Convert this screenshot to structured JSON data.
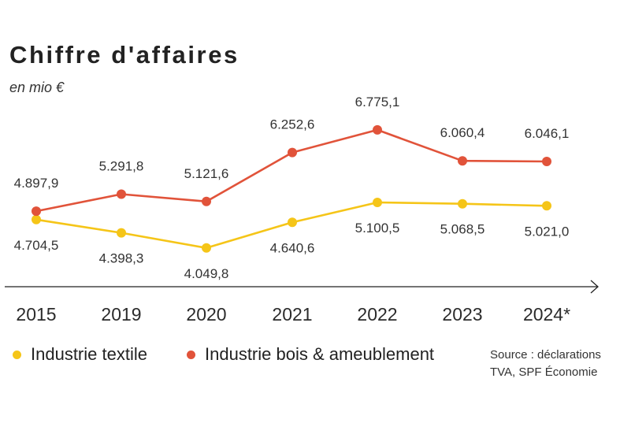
{
  "chart_data": {
    "type": "line",
    "title": "Chiffre d'affaires",
    "subtitle": "en mio €",
    "categories": [
      "2015",
      "2019",
      "2020",
      "2021",
      "2022",
      "2023",
      "2024*"
    ],
    "series": [
      {
        "name": "Industrie textile",
        "color": "#f5c518",
        "values": [
          4704.5,
          4398.3,
          4049.8,
          4640.6,
          5100.5,
          5068.5,
          5021.0
        ],
        "labels": [
          "4.704,5",
          "4.398,3",
          "4.049,8",
          "4.640,6",
          "5.100,5",
          "5.068,5",
          "5.021,0"
        ],
        "label_position": "below"
      },
      {
        "name": "Industrie bois & ameublement",
        "color": "#e1533a",
        "values": [
          4897.9,
          5291.8,
          5121.6,
          6252.6,
          6775.1,
          6060.4,
          6046.1
        ],
        "labels": [
          "4.897,9",
          "5.291,8",
          "5.121,6",
          "6.252,6",
          "6.775,1",
          "6.060,4",
          "6.046,1"
        ],
        "label_position": "above"
      }
    ],
    "ylim": [
      3500,
      7500
    ],
    "grid": false,
    "legend": "bottom-left",
    "source": [
      "Source : déclarations",
      "TVA, SPF Économie"
    ]
  }
}
